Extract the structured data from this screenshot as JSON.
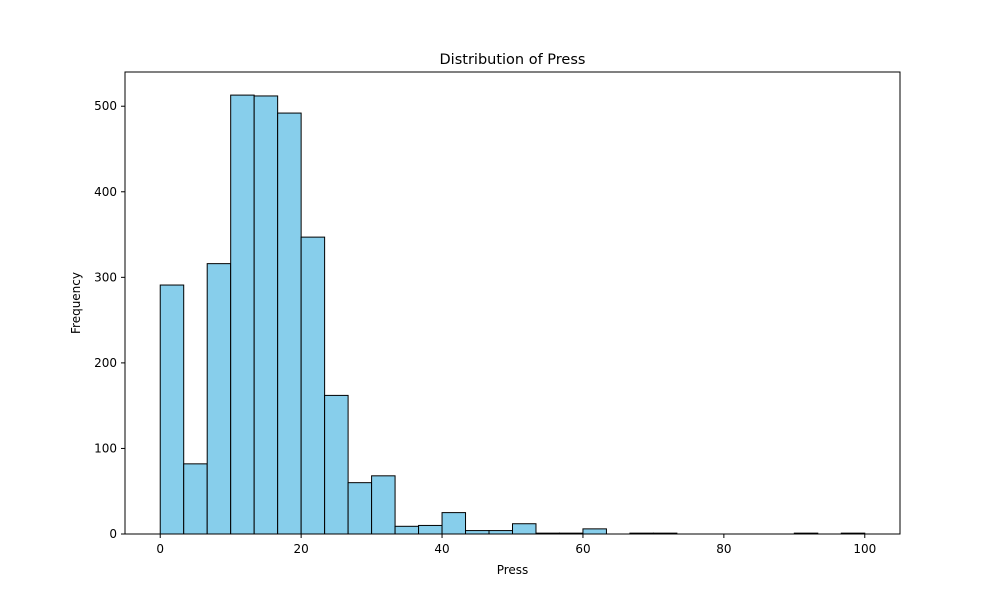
{
  "chart_data": {
    "type": "bar",
    "title": "Distribution of Press",
    "xlabel": "Press",
    "ylabel": "Frequency",
    "xlim": [
      -5,
      105
    ],
    "ylim": [
      0,
      540
    ],
    "xticks": [
      0,
      20,
      40,
      60,
      80,
      100
    ],
    "yticks": [
      0,
      100,
      200,
      300,
      400,
      500
    ],
    "grid": false,
    "legend": "none",
    "bar_color": "#87ceeb",
    "edge_color": "#000000",
    "bins": {
      "start": 0,
      "width": 3.3333,
      "counts": [
        291,
        82,
        316,
        513,
        512,
        492,
        347,
        162,
        60,
        68,
        9,
        10,
        25,
        4,
        4,
        12,
        1,
        1,
        6,
        0,
        1,
        1,
        0,
        0,
        0,
        0,
        0,
        1,
        0,
        1
      ]
    }
  }
}
